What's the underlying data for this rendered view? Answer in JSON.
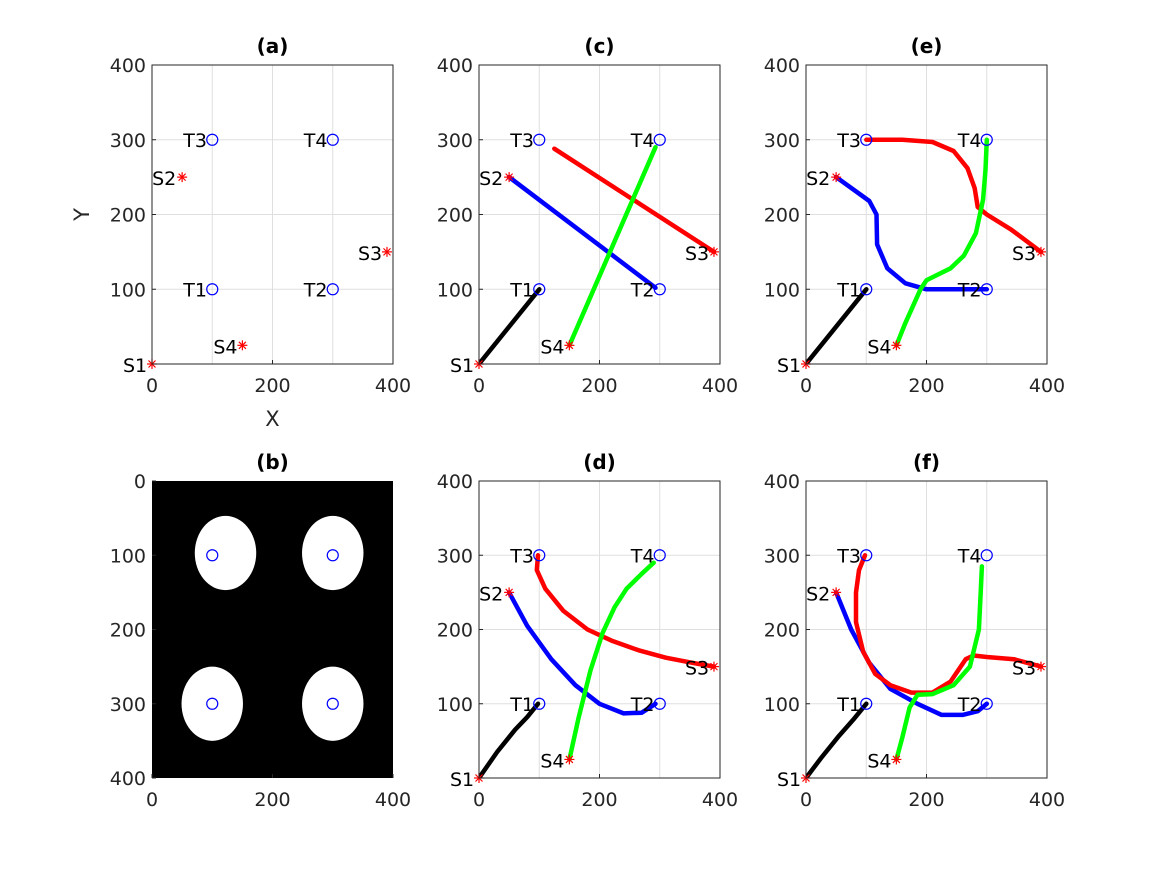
{
  "chart_data": [
    {
      "id": "a",
      "type": "scatter",
      "title": "(a)",
      "xlabel": "X",
      "ylabel": "Y",
      "xlim": [
        0,
        400
      ],
      "ylim": [
        0,
        400
      ],
      "ydir": "normal",
      "grid": true,
      "xticks": [
        0,
        200,
        400
      ],
      "yticks": [
        100,
        200,
        300,
        400
      ],
      "xtick_labels": [
        "0",
        "200",
        "400"
      ],
      "ytick_labels": [
        "100",
        "200",
        "300",
        "400"
      ],
      "sources": [
        {
          "label": "S1",
          "x": 0,
          "y": 0
        },
        {
          "label": "S2",
          "x": 50,
          "y": 250
        },
        {
          "label": "S3",
          "x": 390,
          "y": 150
        },
        {
          "label": "S4",
          "x": 150,
          "y": 25
        }
      ],
      "targets": [
        {
          "label": "T1",
          "x": 100,
          "y": 100
        },
        {
          "label": "T2",
          "x": 300,
          "y": 100
        },
        {
          "label": "T3",
          "x": 100,
          "y": 300
        },
        {
          "label": "T4",
          "x": 300,
          "y": 300
        }
      ],
      "paths": []
    },
    {
      "id": "b",
      "type": "image",
      "title": "(b)",
      "xlim": [
        0,
        400
      ],
      "ylim": [
        0,
        400
      ],
      "ydir": "reverse",
      "grid": false,
      "xticks": [
        0,
        200,
        400
      ],
      "yticks": [
        0,
        100,
        200,
        300,
        400
      ],
      "xtick_labels": [
        "0",
        "200",
        "400"
      ],
      "ytick_labels": [
        "0",
        "100",
        "200",
        "300",
        "400"
      ],
      "background": "#000000",
      "regions": [
        {
          "cx": 122,
          "cy": 97,
          "rx": 51,
          "ry": 50
        },
        {
          "cx": 300,
          "cy": 97,
          "rx": 51,
          "ry": 50
        },
        {
          "cx": 100,
          "cy": 300,
          "rx": 51,
          "ry": 50
        },
        {
          "cx": 300,
          "cy": 300,
          "rx": 51,
          "ry": 50
        }
      ],
      "markers": [
        {
          "x": 100,
          "y": 100
        },
        {
          "x": 300,
          "y": 100
        },
        {
          "x": 100,
          "y": 300
        },
        {
          "x": 300,
          "y": 300
        }
      ]
    },
    {
      "id": "c",
      "type": "line",
      "title": "(c)",
      "xlim": [
        0,
        400
      ],
      "ylim": [
        0,
        400
      ],
      "ydir": "normal",
      "grid": true,
      "xticks": [
        0,
        200,
        400
      ],
      "yticks": [
        100,
        200,
        300,
        400
      ],
      "xtick_labels": [
        "0",
        "200",
        "400"
      ],
      "ytick_labels": [
        "100",
        "200",
        "300",
        "400"
      ],
      "sources": [
        {
          "label": "S1",
          "x": 0,
          "y": 0
        },
        {
          "label": "S2",
          "x": 50,
          "y": 250
        },
        {
          "label": "S3",
          "x": 390,
          "y": 150
        },
        {
          "label": "S4",
          "x": 150,
          "y": 25
        }
      ],
      "targets": [
        {
          "label": "T1",
          "x": 100,
          "y": 100
        },
        {
          "label": "T2",
          "x": 300,
          "y": 100
        },
        {
          "label": "T3",
          "x": 100,
          "y": 300
        },
        {
          "label": "T4",
          "x": 300,
          "y": 300
        }
      ],
      "paths": [
        {
          "color": "#000000",
          "points": [
            [
              0,
              0
            ],
            [
              100,
              100
            ]
          ]
        },
        {
          "color": "#0000ff",
          "points": [
            [
              50,
              250
            ],
            [
              293,
              102
            ]
          ]
        },
        {
          "color": "#ff0000",
          "points": [
            [
              125,
              288
            ],
            [
              390,
              150
            ]
          ]
        },
        {
          "color": "#00ff00",
          "points": [
            [
              150,
              25
            ],
            [
              293,
              290
            ]
          ]
        }
      ]
    },
    {
      "id": "d",
      "type": "line",
      "title": "(d)",
      "xlim": [
        0,
        400
      ],
      "ylim": [
        0,
        400
      ],
      "ydir": "normal",
      "grid": true,
      "xticks": [
        0,
        200,
        400
      ],
      "yticks": [
        100,
        200,
        300,
        400
      ],
      "xtick_labels": [
        "0",
        "200",
        "400"
      ],
      "ytick_labels": [
        "100",
        "200",
        "300",
        "400"
      ],
      "sources": [
        {
          "label": "S1",
          "x": 0,
          "y": 0
        },
        {
          "label": "S2",
          "x": 50,
          "y": 250
        },
        {
          "label": "S3",
          "x": 390,
          "y": 150
        },
        {
          "label": "S4",
          "x": 150,
          "y": 25
        }
      ],
      "targets": [
        {
          "label": "T1",
          "x": 100,
          "y": 100
        },
        {
          "label": "T2",
          "x": 300,
          "y": 100
        },
        {
          "label": "T3",
          "x": 100,
          "y": 300
        },
        {
          "label": "T4",
          "x": 300,
          "y": 300
        }
      ],
      "paths": [
        {
          "color": "#000000",
          "points": [
            [
              0,
              0
            ],
            [
              30,
              35
            ],
            [
              60,
              65
            ],
            [
              80,
              82
            ],
            [
              98,
              100
            ]
          ]
        },
        {
          "color": "#0000ff",
          "points": [
            [
              50,
              250
            ],
            [
              80,
              205
            ],
            [
              120,
              160
            ],
            [
              160,
              125
            ],
            [
              200,
              100
            ],
            [
              240,
              87
            ],
            [
              270,
              88
            ],
            [
              293,
              100
            ]
          ]
        },
        {
          "color": "#ff0000",
          "points": [
            [
              98,
              300
            ],
            [
              96,
              280
            ],
            [
              110,
              255
            ],
            [
              140,
              225
            ],
            [
              180,
              200
            ],
            [
              220,
              185
            ],
            [
              265,
              172
            ],
            [
              310,
              162
            ],
            [
              355,
              155
            ],
            [
              390,
              150
            ]
          ]
        },
        {
          "color": "#00ff00",
          "points": [
            [
              150,
              25
            ],
            [
              165,
              80
            ],
            [
              185,
              145
            ],
            [
              205,
              195
            ],
            [
              225,
              230
            ],
            [
              245,
              255
            ],
            [
              270,
              275
            ],
            [
              290,
              290
            ]
          ]
        }
      ]
    },
    {
      "id": "e",
      "type": "line",
      "title": "(e)",
      "xlim": [
        0,
        400
      ],
      "ylim": [
        0,
        400
      ],
      "ydir": "normal",
      "grid": true,
      "xticks": [
        0,
        200,
        400
      ],
      "yticks": [
        100,
        200,
        300,
        400
      ],
      "xtick_labels": [
        "0",
        "200",
        "400"
      ],
      "ytick_labels": [
        "100",
        "200",
        "300",
        "400"
      ],
      "sources": [
        {
          "label": "S1",
          "x": 0,
          "y": 0
        },
        {
          "label": "S2",
          "x": 50,
          "y": 250
        },
        {
          "label": "S3",
          "x": 390,
          "y": 150
        },
        {
          "label": "S4",
          "x": 150,
          "y": 25
        }
      ],
      "targets": [
        {
          "label": "T1",
          "x": 100,
          "y": 100
        },
        {
          "label": "T2",
          "x": 300,
          "y": 100
        },
        {
          "label": "T3",
          "x": 100,
          "y": 300
        },
        {
          "label": "T4",
          "x": 300,
          "y": 300
        }
      ],
      "paths": [
        {
          "color": "#000000",
          "points": [
            [
              0,
              0
            ],
            [
              100,
              100
            ]
          ]
        },
        {
          "color": "#0000ff",
          "points": [
            [
              50,
              250
            ],
            [
              105,
              218
            ],
            [
              117,
              200
            ],
            [
              118,
              160
            ],
            [
              135,
              128
            ],
            [
              165,
              108
            ],
            [
              200,
              100
            ],
            [
              260,
              100
            ],
            [
              300,
              100
            ]
          ]
        },
        {
          "color": "#ff0000",
          "points": [
            [
              100,
              300
            ],
            [
              160,
              300
            ],
            [
              210,
              297
            ],
            [
              245,
              285
            ],
            [
              268,
              262
            ],
            [
              280,
              235
            ],
            [
              285,
              210
            ],
            [
              300,
              200
            ],
            [
              340,
              180
            ],
            [
              390,
              150
            ]
          ]
        },
        {
          "color": "#00ff00",
          "points": [
            [
              150,
              25
            ],
            [
              165,
              55
            ],
            [
              190,
              100
            ],
            [
              200,
              112
            ],
            [
              215,
              118
            ],
            [
              240,
              128
            ],
            [
              262,
              145
            ],
            [
              282,
              175
            ],
            [
              294,
              220
            ],
            [
              298,
              260
            ],
            [
              300,
              300
            ]
          ]
        }
      ]
    },
    {
      "id": "f",
      "type": "line",
      "title": "(f)",
      "xlim": [
        0,
        400
      ],
      "ylim": [
        0,
        400
      ],
      "ydir": "normal",
      "grid": true,
      "xticks": [
        0,
        200,
        400
      ],
      "yticks": [
        100,
        200,
        300,
        400
      ],
      "xtick_labels": [
        "0",
        "200",
        "400"
      ],
      "ytick_labels": [
        "100",
        "200",
        "300",
        "400"
      ],
      "sources": [
        {
          "label": "S1",
          "x": 0,
          "y": 0
        },
        {
          "label": "S2",
          "x": 50,
          "y": 250
        },
        {
          "label": "S3",
          "x": 390,
          "y": 150
        },
        {
          "label": "S4",
          "x": 150,
          "y": 25
        }
      ],
      "targets": [
        {
          "label": "T1",
          "x": 100,
          "y": 100
        },
        {
          "label": "T2",
          "x": 300,
          "y": 100
        },
        {
          "label": "T3",
          "x": 100,
          "y": 300
        },
        {
          "label": "T4",
          "x": 300,
          "y": 300
        }
      ],
      "paths": [
        {
          "color": "#000000",
          "points": [
            [
              0,
              0
            ],
            [
              25,
              27
            ],
            [
              55,
              57
            ],
            [
              80,
              80
            ],
            [
              100,
              100
            ]
          ]
        },
        {
          "color": "#0000ff",
          "points": [
            [
              50,
              250
            ],
            [
              75,
              200
            ],
            [
              105,
              155
            ],
            [
              140,
              120
            ],
            [
              185,
              100
            ],
            [
              225,
              85
            ],
            [
              260,
              85
            ],
            [
              285,
              90
            ],
            [
              300,
              100
            ]
          ]
        },
        {
          "color": "#ff0000",
          "points": [
            [
              98,
              300
            ],
            [
              88,
              280
            ],
            [
              83,
              250
            ],
            [
              83,
              210
            ],
            [
              95,
              170
            ],
            [
              115,
              140
            ],
            [
              140,
              125
            ],
            [
              175,
              115
            ],
            [
              210,
              115
            ],
            [
              240,
              130
            ],
            [
              265,
              160
            ],
            [
              278,
              165
            ],
            [
              300,
              163
            ],
            [
              345,
              160
            ],
            [
              390,
              150
            ]
          ]
        },
        {
          "color": "#00ff00",
          "points": [
            [
              150,
              25
            ],
            [
              160,
              55
            ],
            [
              172,
              95
            ],
            [
              185,
              112
            ],
            [
              210,
              113
            ],
            [
              245,
              125
            ],
            [
              272,
              150
            ],
            [
              287,
              200
            ],
            [
              290,
              250
            ],
            [
              292,
              285
            ]
          ]
        }
      ]
    }
  ]
}
